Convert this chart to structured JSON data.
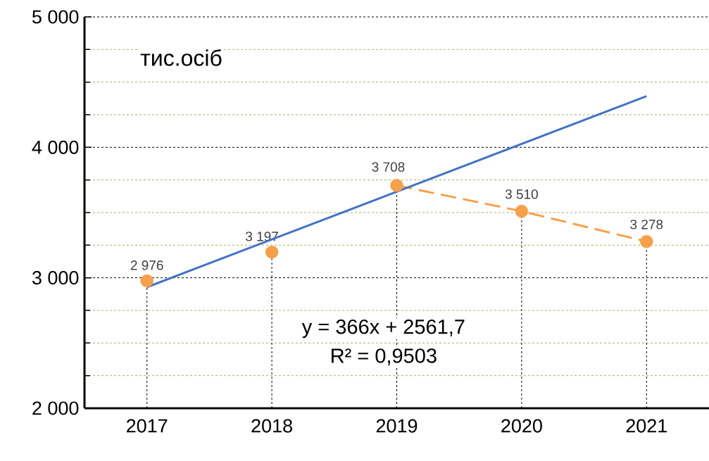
{
  "chart_data": {
    "type": "line",
    "categories": [
      "2017",
      "2018",
      "2019",
      "2020",
      "2021"
    ],
    "series": [
      {
        "type": "scatter",
        "color": "#f5a04a",
        "marker": "circle",
        "values": [
          2976,
          3197,
          3708,
          3510,
          3278
        ],
        "value_labels": [
          "2 976",
          "3 197",
          "3 708",
          "3 510",
          "3 278"
        ]
      },
      {
        "color": "#f5a04a",
        "line_style": "dashed",
        "values": [
          null,
          null,
          3708,
          3510,
          3278
        ]
      },
      {
        "color": "#4472c4",
        "line_style": "solid",
        "values": [
          2928,
          3294,
          3660,
          4026,
          4392
        ]
      }
    ],
    "ylim": [
      2000,
      5000
    ],
    "yticks": [
      {
        "value": 2000,
        "label": "2 000"
      },
      {
        "value": 2250,
        "label": null
      },
      {
        "value": 2500,
        "label": null
      },
      {
        "value": 2750,
        "label": null
      },
      {
        "value": 3000,
        "label": "3 000"
      },
      {
        "value": 3250,
        "label": null
      },
      {
        "value": 3500,
        "label": null
      },
      {
        "value": 3750,
        "label": null
      },
      {
        "value": 4000,
        "label": "4 000"
      },
      {
        "value": 4250,
        "label": null
      },
      {
        "value": 4500,
        "label": null
      },
      {
        "value": 4750,
        "label": null
      },
      {
        "value": 5000,
        "label": "5 000"
      }
    ],
    "grid": "y",
    "annotations": [
      "тис.осіб",
      "y = 366x + 2561,7",
      "R² = 0,9503"
    ]
  }
}
